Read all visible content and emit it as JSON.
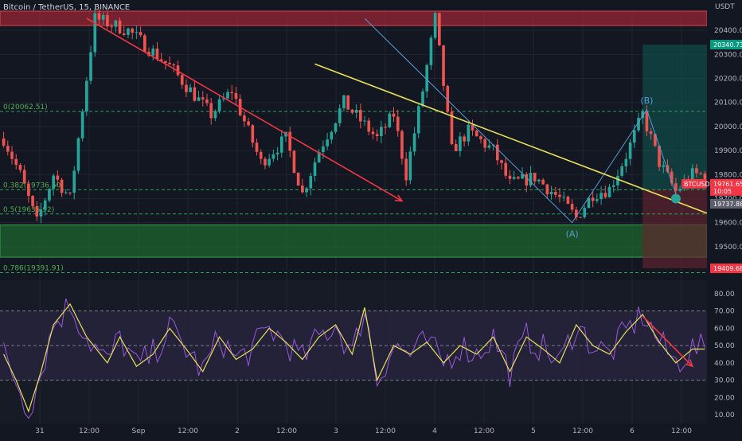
{
  "header": {
    "title": "Bitcoin / TetherUS, 15, BINANCE"
  },
  "colors": {
    "background": "#131722",
    "up": "#26a69a",
    "down": "#ef5350",
    "resistance_zone": "#c62a3a",
    "support_zone": "#1f6b2e",
    "target_zone": "#0f5b55",
    "stop_zone": "#6b2530",
    "fib_line": "#2f9e5b",
    "rsi": "#9b59d9",
    "rsi_ma": "#e9e15b",
    "red_trend": "#f23645",
    "yellow_trend": "#e9e15b",
    "wave_line": "#5b9bd5"
  },
  "chart_data": {
    "type": "candlestick",
    "symbol": "BTCUSDT",
    "currency": "USDT",
    "ylim": [
      19400,
      20480
    ],
    "y_ticks": [
      20400,
      20300,
      20200,
      20100,
      20000,
      19900,
      19800,
      19700,
      19600,
      19500
    ],
    "x_ticks": [
      "31",
      "12:00",
      "Sep",
      "12:00",
      "2",
      "12:00",
      "3",
      "12:00",
      "4",
      "12:00",
      "5",
      "12:00",
      "6",
      "12:00"
    ],
    "candle_path": [
      [
        0,
        19950
      ],
      [
        4,
        19800
      ],
      [
        8,
        19600
      ],
      [
        12,
        19800
      ],
      [
        16,
        19700
      ],
      [
        22,
        20450
      ],
      [
        30,
        20400
      ],
      [
        40,
        20250
      ],
      [
        50,
        20050
      ],
      [
        55,
        20150
      ],
      [
        62,
        19850
      ],
      [
        68,
        19950
      ],
      [
        72,
        19720
      ],
      [
        76,
        19900
      ],
      [
        82,
        20100
      ],
      [
        90,
        19950
      ],
      [
        94,
        20050
      ],
      [
        97,
        19800
      ],
      [
        101,
        20150
      ],
      [
        104,
        20450
      ],
      [
        108,
        19900
      ],
      [
        112,
        19980
      ],
      [
        118,
        19900
      ],
      [
        122,
        19760
      ],
      [
        128,
        19790
      ],
      [
        134,
        19700
      ],
      [
        138,
        19620
      ],
      [
        142,
        19720
      ],
      [
        146,
        19740
      ],
      [
        150,
        19880
      ],
      [
        154,
        20050
      ],
      [
        158,
        19850
      ],
      [
        162,
        19730
      ],
      [
        166,
        19800
      ]
    ],
    "fib_levels": [
      {
        "label": "0(20062.51)",
        "value": 20062.51
      },
      {
        "label": "0.382(19736.60)",
        "value": 19736.6
      },
      {
        "label": "0.5(19635.92)",
        "value": 19635.92
      },
      {
        "label": "0.786(19391.91)",
        "value": 19391.91
      }
    ],
    "resistance_zone": [
      20420,
      20480
    ],
    "support_zone": [
      19456,
      19590
    ],
    "position": {
      "target": 20340.73,
      "entry": 19737.88,
      "stop": 19409.68,
      "start_index": 154
    },
    "trendlines": [
      {
        "color": "red",
        "from": [
          20,
          20450
        ],
        "to": [
          96,
          19690
        ]
      },
      {
        "color": "yellow",
        "from": [
          75,
          20260
        ],
        "to": [
          180,
          19570
        ]
      }
    ],
    "waves": [
      {
        "label": "(A)",
        "index": 137,
        "value": 19600
      },
      {
        "label": "(B)",
        "index": 155,
        "value": 20070
      }
    ],
    "wave_path": [
      [
        87,
        20450
      ],
      [
        137,
        19600
      ],
      [
        155,
        20070
      ],
      [
        162,
        19720
      ]
    ],
    "price_labels": [
      {
        "text": "20340.73",
        "value": 20340.73,
        "kind": "target"
      },
      {
        "text": "BTCUSDT",
        "value": 19761.65,
        "kind": "symbol"
      },
      {
        "text": "19761.65",
        "value": 19761.65,
        "kind": "last"
      },
      {
        "text": "10:05",
        "value": 19761.65,
        "kind": "timer"
      },
      {
        "text": "19737.88",
        "value": 19737.88,
        "kind": "entry"
      },
      {
        "text": "19409.68",
        "value": 19409.68,
        "kind": "stop"
      }
    ],
    "rsi": {
      "ylim": [
        5,
        85
      ],
      "y_ticks": [
        80,
        70,
        60,
        50,
        40,
        30,
        20,
        10
      ],
      "bands": [
        30,
        50,
        70
      ],
      "path": [
        [
          0,
          45
        ],
        [
          3,
          30
        ],
        [
          6,
          12
        ],
        [
          9,
          35
        ],
        [
          12,
          62
        ],
        [
          16,
          74
        ],
        [
          20,
          55
        ],
        [
          25,
          40
        ],
        [
          28,
          55
        ],
        [
          32,
          38
        ],
        [
          36,
          45
        ],
        [
          40,
          60
        ],
        [
          44,
          48
        ],
        [
          48,
          35
        ],
        [
          52,
          55
        ],
        [
          56,
          42
        ],
        [
          60,
          48
        ],
        [
          64,
          60
        ],
        [
          68,
          52
        ],
        [
          72,
          42
        ],
        [
          76,
          55
        ],
        [
          80,
          62
        ],
        [
          84,
          45
        ],
        [
          87,
          72
        ],
        [
          90,
          30
        ],
        [
          94,
          50
        ],
        [
          98,
          45
        ],
        [
          102,
          52
        ],
        [
          106,
          40
        ],
        [
          110,
          50
        ],
        [
          114,
          45
        ],
        [
          118,
          55
        ],
        [
          122,
          35
        ],
        [
          126,
          55
        ],
        [
          130,
          48
        ],
        [
          134,
          40
        ],
        [
          138,
          62
        ],
        [
          142,
          50
        ],
        [
          146,
          45
        ],
        [
          150,
          58
        ],
        [
          154,
          68
        ],
        [
          158,
          52
        ],
        [
          162,
          40
        ],
        [
          166,
          48
        ]
      ],
      "trendline": {
        "from": [
          154,
          67
        ],
        "to": [
          166,
          38
        ]
      }
    }
  }
}
